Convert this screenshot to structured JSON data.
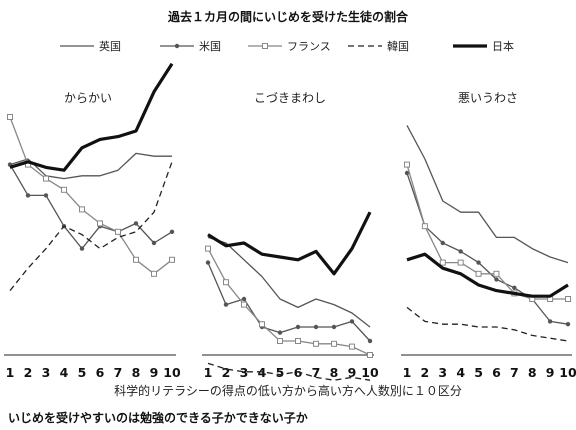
{
  "title": "過去１カ月の間にいじめを受けた生徒の割合",
  "caption": "いじめを受けやすいのは勉強のできる子かできない子か",
  "series_styles": [
    {
      "name": "英国",
      "color": "#555555",
      "dash": "",
      "width": 1.3,
      "marker": "none"
    },
    {
      "name": "米国",
      "color": "#555555",
      "dash": "",
      "width": 1.3,
      "marker": "dot"
    },
    {
      "name": "フランス",
      "color": "#888888",
      "dash": "",
      "width": 1.3,
      "marker": "square"
    },
    {
      "name": "韓国",
      "color": "#222222",
      "dash": "6,4",
      "width": 1.3,
      "marker": "none"
    },
    {
      "name": "日本",
      "color": "#111111",
      "dash": "",
      "width": 3.2,
      "marker": "none"
    }
  ],
  "chart_data": {
    "type": "line",
    "title": "過去１カ月の間にいじめを受けた生徒の割合",
    "xlabel": "科学的リテラシーの得点の低い方から高い方へ人数別に１０区分",
    "x": [
      1,
      2,
      3,
      4,
      5,
      6,
      7,
      8,
      9,
      10
    ],
    "ylim": [
      0,
      100
    ],
    "grid": false,
    "legend_position": "top",
    "legend": [
      "英国",
      "米国",
      "フランス",
      "韓国",
      "日本"
    ],
    "panels": [
      {
        "title": "からかい",
        "series": [
          {
            "name": "英国",
            "values": [
              68,
              70,
              64,
              63,
              64,
              64,
              66,
              72,
              71,
              71
            ]
          },
          {
            "name": "米国",
            "values": [
              68,
              57,
              57,
              46,
              38,
              46,
              44,
              47,
              40,
              44
            ]
          },
          {
            "name": "フランス",
            "values": [
              85,
              68,
              63,
              59,
              52,
              47,
              44,
              34,
              29,
              34
            ]
          },
          {
            "name": "韓国",
            "values": [
              23,
              31,
              38,
              46,
              43,
              38,
              42,
              44,
              51,
              69
            ]
          },
          {
            "name": "日本",
            "values": [
              67,
              69,
              67,
              66,
              74,
              77,
              78,
              80,
              94,
              104
            ]
          }
        ]
      },
      {
        "title": "こづきまわし",
        "series": [
          {
            "name": "英国",
            "values": [
              42,
              40,
              34,
              28,
              20,
              17,
              20,
              18,
              15,
              10
            ]
          },
          {
            "name": "米国",
            "values": [
              33,
              18,
              20,
              10,
              8,
              10,
              10,
              10,
              12,
              5
            ]
          },
          {
            "name": "フランス",
            "values": [
              38,
              26,
              18,
              11,
              5,
              5,
              4,
              4,
              3,
              0
            ]
          },
          {
            "name": "韓国",
            "values": [
              -3,
              -5,
              -6,
              -6,
              -7,
              -6,
              -8,
              -9,
              -8,
              -9
            ]
          },
          {
            "name": "日本",
            "values": [
              43,
              39,
              40,
              36,
              35,
              34,
              37,
              29,
              38,
              51
            ]
          }
        ]
      },
      {
        "title": "悪いうわさ",
        "series": [
          {
            "name": "英国",
            "values": [
              82,
              70,
              55,
              51,
              51,
              42,
              42,
              38,
              35,
              33
            ]
          },
          {
            "name": "米国",
            "values": [
              65,
              46,
              40,
              37,
              33,
              27,
              24,
              20,
              12,
              11
            ]
          },
          {
            "name": "フランス",
            "values": [
              68,
              46,
              33,
              33,
              29,
              29,
              22,
              20,
              20,
              20
            ]
          },
          {
            "name": "韓国",
            "values": [
              17,
              12,
              11,
              11,
              10,
              10,
              9,
              7,
              6,
              5
            ]
          },
          {
            "name": "日本",
            "values": [
              34,
              36,
              31,
              29,
              25,
              23,
              22,
              21,
              21,
              25
            ]
          }
        ]
      }
    ]
  }
}
